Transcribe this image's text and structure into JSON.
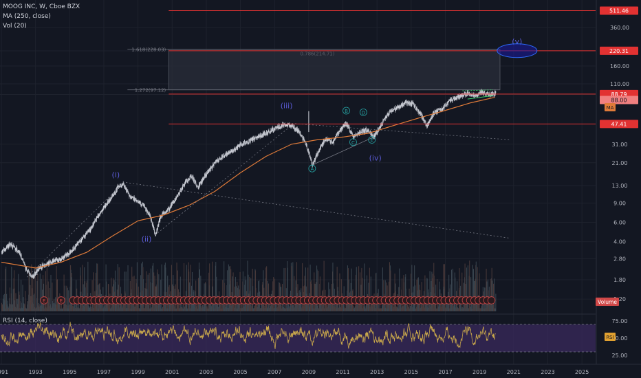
{
  "header": {
    "title": "MOOG INC, W, Cboe BZX",
    "ma_label": "MA (250, close)",
    "vol_label": "Vol (20)"
  },
  "rsi_panel": {
    "legend": "RSI (14, close)",
    "badge": "RSI",
    "ticks": [
      "75.00",
      "50.00",
      "25.00"
    ]
  },
  "colors": {
    "background": "#131722",
    "grid": "#1e222d",
    "candle_up": "#d1d4dc",
    "candle_down": "#b2b5be",
    "ma": "#e07b39",
    "horizontal_line": "#e23232",
    "wave_label": "#5b5bd6",
    "wave_alt_label": "#26a6a6",
    "rsi_line": "#c9a84b",
    "rsi_band": "#3a2a5c",
    "projection_box": "#2a2e39",
    "earnings": "#d04848"
  },
  "chart_data": {
    "type": "candlestick",
    "symbol": "MOOG INC",
    "timeframe": "W",
    "exchange": "Cboe BZX",
    "y_scale": "log",
    "ylim": [
      0.9,
      640
    ],
    "x_range": [
      1991.0,
      2025.8
    ],
    "price_axis_ticks": [
      "360.00",
      "220.00",
      "160.00",
      "110.00",
      "88.00",
      "31.00",
      "21.00",
      "13.00",
      "9.00",
      "6.00",
      "4.00",
      "2.80",
      "1.80",
      "1.20"
    ],
    "price_axis_values": [
      360,
      220,
      160,
      110,
      88,
      31,
      21,
      13,
      9,
      6,
      4,
      2.8,
      1.8,
      1.2
    ],
    "time_axis_ticks": [
      "1991",
      "1993",
      "1995",
      "1997",
      "1999",
      "2001",
      "2003",
      "2005",
      "2007",
      "2009",
      "2011",
      "2013",
      "2015",
      "2017",
      "2019",
      "2021",
      "2023",
      "2025"
    ],
    "time_axis_years": [
      1991,
      1993,
      1995,
      1997,
      1999,
      2001,
      2003,
      2005,
      2007,
      2009,
      2011,
      2013,
      2015,
      2017,
      2019,
      2021,
      2023,
      2025
    ],
    "price_path": [
      [
        1991.0,
        3.2
      ],
      [
        1991.5,
        3.8
      ],
      [
        1992.0,
        3.3
      ],
      [
        1992.4,
        2.3
      ],
      [
        1992.8,
        1.9
      ],
      [
        1993.2,
        2.3
      ],
      [
        1993.8,
        2.6
      ],
      [
        1994.5,
        2.8
      ],
      [
        1995.0,
        3.2
      ],
      [
        1995.6,
        4.1
      ],
      [
        1996.2,
        5.2
      ],
      [
        1996.8,
        7.5
      ],
      [
        1997.3,
        9.5
      ],
      [
        1997.8,
        12.5
      ],
      [
        1998.1,
        13.5
      ],
      [
        1998.5,
        10.5
      ],
      [
        1998.9,
        9.5
      ],
      [
        1999.3,
        8.5
      ],
      [
        1999.7,
        6.8
      ],
      [
        2000.0,
        4.6
      ],
      [
        2000.3,
        6.8
      ],
      [
        2000.8,
        8.0
      ],
      [
        2001.3,
        10.5
      ],
      [
        2001.7,
        13.5
      ],
      [
        2002.1,
        16.0
      ],
      [
        2002.5,
        12.5
      ],
      [
        2002.9,
        16.0
      ],
      [
        2003.4,
        20.0
      ],
      [
        2003.9,
        24.0
      ],
      [
        2004.5,
        27.0
      ],
      [
        2005.0,
        31.0
      ],
      [
        2005.5,
        33.0
      ],
      [
        2006.0,
        36.0
      ],
      [
        2006.6,
        40.0
      ],
      [
        2007.1,
        44.0
      ],
      [
        2007.6,
        47.0
      ],
      [
        2008.0,
        46.0
      ],
      [
        2008.4,
        40.0
      ],
      [
        2008.8,
        32.0
      ],
      [
        2009.2,
        20.0
      ],
      [
        2009.6,
        28.0
      ],
      [
        2010.0,
        35.0
      ],
      [
        2010.4,
        32.0
      ],
      [
        2010.8,
        42.0
      ],
      [
        2011.2,
        48.0
      ],
      [
        2011.6,
        36.0
      ],
      [
        2012.0,
        40.0
      ],
      [
        2012.4,
        42.0
      ],
      [
        2012.8,
        36.0
      ],
      [
        2013.2,
        46.0
      ],
      [
        2013.7,
        60.0
      ],
      [
        2014.2,
        68.0
      ],
      [
        2014.7,
        74.0
      ],
      [
        2015.1,
        72.0
      ],
      [
        2015.6,
        56.0
      ],
      [
        2015.9,
        45.0
      ],
      [
        2016.3,
        60.0
      ],
      [
        2016.8,
        66.0
      ],
      [
        2017.3,
        78.0
      ],
      [
        2017.8,
        85.0
      ],
      [
        2018.2,
        90.0
      ],
      [
        2018.7,
        86.0
      ],
      [
        2019.1,
        92.0
      ],
      [
        2019.5,
        88.0
      ],
      [
        2019.9,
        90.0
      ]
    ],
    "moving_average": {
      "name": "MA (250, close)",
      "points": [
        [
          1991.0,
          2.6
        ],
        [
          1993.0,
          2.3
        ],
        [
          1994.5,
          2.6
        ],
        [
          1996.0,
          3.2
        ],
        [
          1997.5,
          4.5
        ],
        [
          1999.0,
          6.2
        ],
        [
          2000.5,
          7.0
        ],
        [
          2002.0,
          8.6
        ],
        [
          2003.5,
          11.5
        ],
        [
          2005.0,
          17.0
        ],
        [
          2006.5,
          24.0
        ],
        [
          2008.0,
          31.0
        ],
        [
          2009.5,
          34.0
        ],
        [
          2011.0,
          36.0
        ],
        [
          2012.5,
          39.0
        ],
        [
          2014.0,
          46.0
        ],
        [
          2015.5,
          54.0
        ],
        [
          2017.0,
          63.0
        ],
        [
          2018.5,
          74.0
        ],
        [
          2019.9,
          83.0
        ]
      ]
    },
    "horizontal_levels": [
      {
        "value": 511.46,
        "label": "511.46",
        "x_start": 2000.8
      },
      {
        "value": 220.31,
        "label": "220.31",
        "x_start": 2000.8
      },
      {
        "value": 88.79,
        "label": "88.79",
        "x_start": 2000.8
      },
      {
        "value": 47.41,
        "label": "47.41",
        "x_start": 2000.8
      }
    ],
    "current_price_badge": "88.00",
    "ma_badge": "MA",
    "projection_box": {
      "x_start": 2000.8,
      "x_end": 2020.2,
      "y_low": 97.12,
      "y_high": 228.03,
      "top_label": "1.618(228.03)",
      "bottom_label": "1.272(97.12)",
      "mid_label": "0.786(214.71)"
    },
    "wave_labels": [
      {
        "text": "(i)",
        "x": 1997.7,
        "y": 15.5,
        "style": "primary"
      },
      {
        "text": "(ii)",
        "x": 1999.5,
        "y": 4.0,
        "style": "primary"
      },
      {
        "text": "(iii)",
        "x": 2007.7,
        "y": 66.0,
        "style": "primary"
      },
      {
        "text": "(iv)",
        "x": 2012.9,
        "y": 22.0,
        "style": "primary"
      },
      {
        "text": "(v)",
        "x": 2021.2,
        "y": 255.0,
        "style": "primary"
      },
      {
        "text": "A",
        "x": 2009.2,
        "y": 17.8,
        "style": "secondary"
      },
      {
        "text": "B",
        "x": 2011.2,
        "y": 60.0,
        "style": "secondary"
      },
      {
        "text": "C",
        "x": 2011.6,
        "y": 31.0,
        "style": "secondary"
      },
      {
        "text": "D",
        "x": 2012.2,
        "y": 58.0,
        "style": "secondary"
      },
      {
        "text": "E",
        "x": 2012.7,
        "y": 32.5,
        "style": "secondary"
      }
    ],
    "volume_label": "Volume",
    "rsi": {
      "name": "RSI (14, close)",
      "upper": 70,
      "lower": 30,
      "middle": 50,
      "ylim": [
        20,
        80
      ]
    }
  }
}
